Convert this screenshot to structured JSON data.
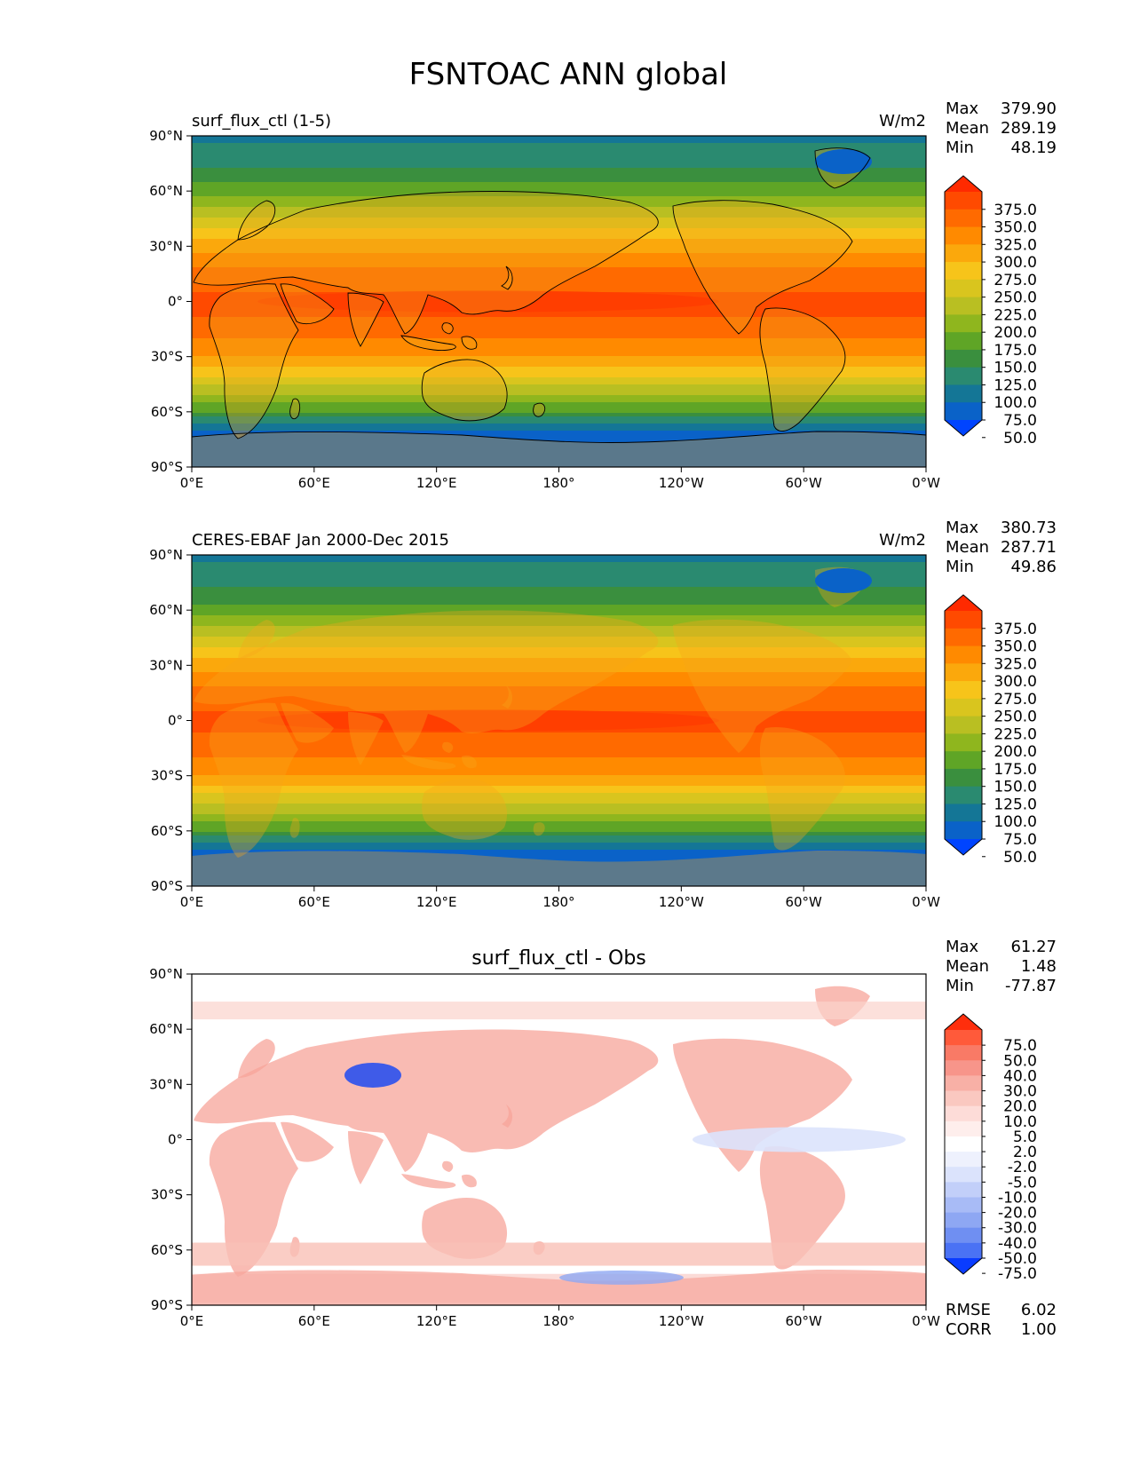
{
  "figure": {
    "title": "FSNTOAC ANN global"
  },
  "axes": {
    "x_ticks": [
      "0°E",
      "60°E",
      "120°E",
      "180°",
      "120°W",
      "60°W",
      "0°W"
    ],
    "y_ticks": [
      "90°N",
      "60°N",
      "30°N",
      "0°",
      "30°S",
      "60°S",
      "90°S"
    ]
  },
  "colorbars": {
    "absolute": {
      "labels": [
        "375.0",
        "350.0",
        "325.0",
        "300.0",
        "275.0",
        "250.0",
        "225.0",
        "200.0",
        "175.0",
        "150.0",
        "125.0",
        "100.0",
        "75.0",
        "50.0"
      ],
      "colors": [
        "#ff2a00",
        "#ff4a00",
        "#ff6a00",
        "#ff8a00",
        "#fba80c",
        "#f7c41a",
        "#d9c51e",
        "#b9bf22",
        "#8fb61e",
        "#5fa526",
        "#3a8f3e",
        "#2a8a70",
        "#147696",
        "#0a62c8",
        "#0044ff"
      ]
    },
    "difference": {
      "labels": [
        "75.0",
        "50.0",
        "40.0",
        "30.0",
        "20.0",
        "10.0",
        "5.0",
        "2.0",
        "-2.0",
        "-5.0",
        "-10.0",
        "-20.0",
        "-30.0",
        "-40.0",
        "-50.0",
        "-75.0"
      ],
      "colors": [
        "#ff2e0c",
        "#ff5a3a",
        "#f97a66",
        "#f7958a",
        "#f8b0a6",
        "#fac8c0",
        "#fddcd8",
        "#feeeec",
        "#ffffff",
        "#eef1fd",
        "#dbe3fc",
        "#c2cff9",
        "#a8bbf6",
        "#8ea7f3",
        "#6f8ff2",
        "#4a72f4",
        "#0a3cff"
      ]
    }
  },
  "panels": [
    {
      "left_title": "surf_flux_ctl (1-5)",
      "center_title": "",
      "units": "W/m2",
      "stats": [
        {
          "label": "Max",
          "value": "379.90"
        },
        {
          "label": "Mean",
          "value": "289.19"
        },
        {
          "label": "Min",
          "value": "48.19"
        }
      ],
      "colorbar": "absolute"
    },
    {
      "left_title": "CERES-EBAF Jan 2000-Dec 2015",
      "center_title": "",
      "units": "W/m2",
      "stats": [
        {
          "label": "Max",
          "value": "380.73"
        },
        {
          "label": "Mean",
          "value": "287.71"
        },
        {
          "label": "Min",
          "value": "49.86"
        }
      ],
      "colorbar": "absolute"
    },
    {
      "left_title": "",
      "center_title": "surf_flux_ctl - Obs",
      "units": "",
      "stats": [
        {
          "label": "Max",
          "value": "61.27"
        },
        {
          "label": "Mean",
          "value": "1.48"
        },
        {
          "label": "Min",
          "value": "-77.87"
        }
      ],
      "colorbar": "difference",
      "extra_stats": [
        {
          "label": "RMSE",
          "value": "6.02"
        },
        {
          "label": "CORR",
          "value": "1.00"
        }
      ]
    }
  ],
  "chart_data": [
    {
      "type": "heatmap",
      "title": "surf_flux_ctl (1-5)",
      "units": "W/m2",
      "x_range": [
        "0°E",
        "0°W"
      ],
      "y_range": [
        "90°S",
        "90°N"
      ],
      "zonal_mean_profile": {
        "lat": [
          90,
          75,
          60,
          45,
          30,
          15,
          0,
          -15,
          -30,
          -45,
          -60,
          -70,
          -90
        ],
        "value": [
          95,
          115,
          165,
          230,
          290,
          335,
          360,
          340,
          300,
          230,
          150,
          75,
          55
        ]
      },
      "max": 379.9,
      "mean": 289.19,
      "min": 48.19
    },
    {
      "type": "heatmap",
      "title": "CERES-EBAF Jan 2000-Dec 2015",
      "units": "W/m2",
      "x_range": [
        "0°E",
        "0°W"
      ],
      "y_range": [
        "90°S",
        "90°N"
      ],
      "zonal_mean_profile": {
        "lat": [
          90,
          75,
          60,
          45,
          30,
          15,
          0,
          -15,
          -30,
          -45,
          -60,
          -70,
          -90
        ],
        "value": [
          95,
          115,
          160,
          225,
          288,
          333,
          358,
          338,
          298,
          228,
          150,
          75,
          55
        ]
      },
      "max": 380.73,
      "mean": 287.71,
      "min": 49.86
    },
    {
      "type": "heatmap",
      "title": "surf_flux_ctl - Obs",
      "x_range": [
        "0°E",
        "0°W"
      ],
      "y_range": [
        "90°S",
        "90°N"
      ],
      "max": 61.27,
      "mean": 1.48,
      "min": -77.87,
      "rmse": 6.02,
      "corr": 1.0
    }
  ]
}
